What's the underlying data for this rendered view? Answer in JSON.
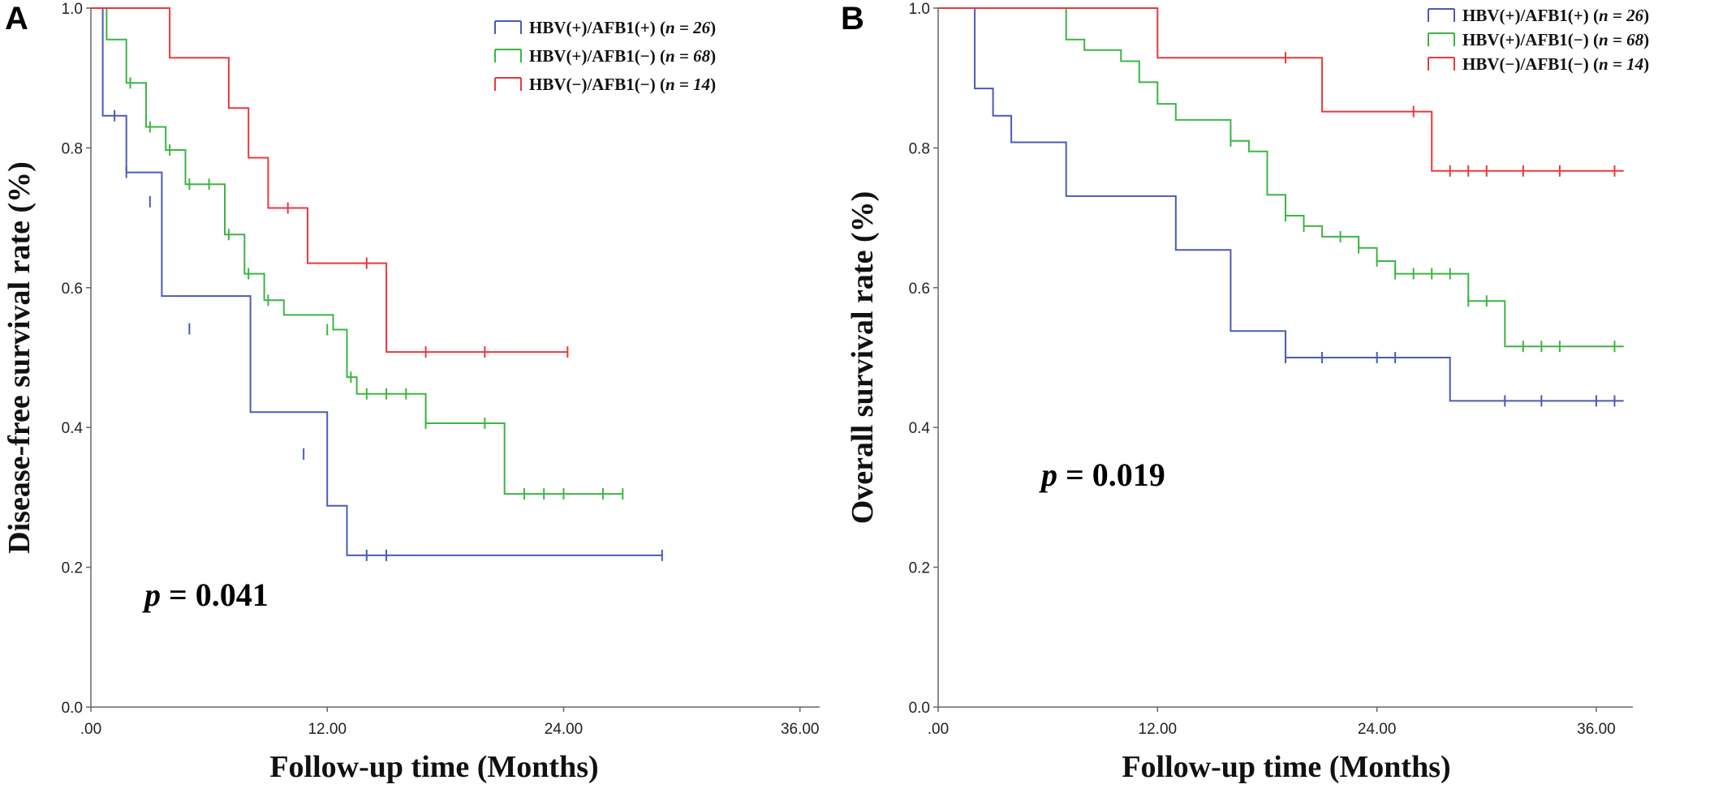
{
  "chart_data": [
    {
      "type": "line",
      "panel_label": "A",
      "xlabel": "Follow-up time (Months)",
      "ylabel": "Disease-free survival rate  (%)",
      "xlim": [
        0,
        37
      ],
      "ylim": [
        0,
        1
      ],
      "xticks": [
        0,
        12,
        24,
        36
      ],
      "xtick_labels": [
        ".00",
        "12.00",
        "24.00",
        "36.00"
      ],
      "yticks": [
        0,
        0.2,
        0.4,
        0.6,
        0.8,
        1.0
      ],
      "ytick_labels": [
        "0.0",
        "0.2",
        "0.4",
        "0.6",
        "0.8",
        "1.0"
      ],
      "legend_position": "top-right",
      "p_prefix": "p",
      "p_value": " = 0.041",
      "series": [
        {
          "name": "HBV(+)/AFB1(+)",
          "n": "n = 26",
          "color": "#4a5bb5",
          "steps": [
            [
              0,
              1.0
            ],
            [
              0.6,
              0.846
            ],
            [
              1.8,
              0.765
            ],
            [
              3.6,
              0.588
            ],
            [
              8.1,
              0.422
            ],
            [
              12,
              0.288
            ],
            [
              13,
              0.217
            ],
            [
              29,
              0.217
            ]
          ],
          "censored": [
            [
              1.2,
              0.846
            ],
            [
              1.8,
              0.765
            ],
            [
              3,
              0.723
            ],
            [
              5,
              0.541
            ],
            [
              10.8,
              0.362
            ],
            [
              14,
              0.217
            ],
            [
              15,
              0.217
            ],
            [
              29,
              0.217
            ]
          ]
        },
        {
          "name": "HBV(+)/AFB1(−)",
          "n": "n = 68",
          "color": "#3cb543",
          "steps": [
            [
              0,
              1.0
            ],
            [
              0.8,
              0.955
            ],
            [
              1.8,
              0.893
            ],
            [
              2.8,
              0.83
            ],
            [
              3.8,
              0.797
            ],
            [
              4.8,
              0.748
            ],
            [
              6.8,
              0.676
            ],
            [
              7.8,
              0.62
            ],
            [
              8.8,
              0.582
            ],
            [
              9.8,
              0.561
            ],
            [
              12.3,
              0.54
            ],
            [
              13,
              0.472
            ],
            [
              13.5,
              0.448
            ],
            [
              17,
              0.406
            ],
            [
              21,
              0.305
            ],
            [
              27,
              0.305
            ]
          ],
          "censored": [
            [
              2,
              0.893
            ],
            [
              3,
              0.83
            ],
            [
              4,
              0.797
            ],
            [
              5,
              0.748
            ],
            [
              6,
              0.748
            ],
            [
              7,
              0.676
            ],
            [
              8,
              0.62
            ],
            [
              9,
              0.582
            ],
            [
              12,
              0.54
            ],
            [
              13.2,
              0.472
            ],
            [
              14,
              0.448
            ],
            [
              15,
              0.448
            ],
            [
              16,
              0.448
            ],
            [
              17,
              0.406
            ],
            [
              20,
              0.406
            ],
            [
              22,
              0.305
            ],
            [
              23,
              0.305
            ],
            [
              24,
              0.305
            ],
            [
              26,
              0.305
            ],
            [
              27,
              0.305
            ]
          ]
        },
        {
          "name": "HBV(−)/AFB1(−)",
          "n": "n = 14",
          "color": "#e8393f",
          "steps": [
            [
              0,
              1.0
            ],
            [
              4,
              0.929
            ],
            [
              7,
              0.857
            ],
            [
              8,
              0.786
            ],
            [
              9,
              0.714
            ],
            [
              11,
              0.635
            ],
            [
              15,
              0.508
            ],
            [
              24.2,
              0.508
            ]
          ],
          "censored": [
            [
              10,
              0.714
            ],
            [
              14,
              0.635
            ],
            [
              17,
              0.508
            ],
            [
              20,
              0.508
            ],
            [
              24.2,
              0.508
            ]
          ]
        }
      ]
    },
    {
      "type": "line",
      "panel_label": "B",
      "xlabel": "Follow-up time (Months)",
      "ylabel": "Overall survival rate (%)",
      "xlim": [
        0,
        38
      ],
      "ylim": [
        0,
        1
      ],
      "xticks": [
        0,
        12,
        24,
        36
      ],
      "xtick_labels": [
        ".00",
        "12.00",
        "24.00",
        "36.00"
      ],
      "yticks": [
        0,
        0.2,
        0.4,
        0.6,
        0.8,
        1.0
      ],
      "ytick_labels": [
        "0.0",
        "0.2",
        "0.4",
        "0.6",
        "0.8",
        "1.0"
      ],
      "legend_position": "top-right",
      "p_prefix": "p",
      "p_value": " = 0.019",
      "series": [
        {
          "name": "HBV(+)/AFB1(+)",
          "n": "n = 26",
          "color": "#4a5bb5",
          "steps": [
            [
              0,
              1.0
            ],
            [
              2,
              0.885
            ],
            [
              3,
              0.846
            ],
            [
              4,
              0.808
            ],
            [
              7,
              0.731
            ],
            [
              13,
              0.654
            ],
            [
              16,
              0.538
            ],
            [
              19,
              0.5
            ],
            [
              28,
              0.438
            ],
            [
              37.5,
              0.438
            ]
          ],
          "censored": [
            [
              19,
              0.5
            ],
            [
              21,
              0.5
            ],
            [
              24,
              0.5
            ],
            [
              25,
              0.5
            ],
            [
              31,
              0.438
            ],
            [
              33,
              0.438
            ],
            [
              36,
              0.438
            ],
            [
              37,
              0.438
            ]
          ]
        },
        {
          "name": "HBV(+)/AFB1(−)",
          "n": "n = 68",
          "color": "#3cb543",
          "steps": [
            [
              0,
              1.0
            ],
            [
              7,
              0.955
            ],
            [
              8,
              0.94
            ],
            [
              10,
              0.924
            ],
            [
              11,
              0.894
            ],
            [
              12,
              0.863
            ],
            [
              13,
              0.84
            ],
            [
              16,
              0.81
            ],
            [
              17,
              0.795
            ],
            [
              18,
              0.733
            ],
            [
              19,
              0.703
            ],
            [
              20,
              0.688
            ],
            [
              21,
              0.673
            ],
            [
              23,
              0.657
            ],
            [
              24,
              0.638
            ],
            [
              25,
              0.62
            ],
            [
              29,
              0.581
            ],
            [
              31,
              0.516
            ],
            [
              37.5,
              0.516
            ]
          ],
          "censored": [
            [
              16,
              0.81
            ],
            [
              19,
              0.703
            ],
            [
              20,
              0.688
            ],
            [
              22,
              0.673
            ],
            [
              23,
              0.657
            ],
            [
              24,
              0.638
            ],
            [
              25,
              0.62
            ],
            [
              26,
              0.62
            ],
            [
              27,
              0.62
            ],
            [
              28,
              0.62
            ],
            [
              29,
              0.581
            ],
            [
              30,
              0.581
            ],
            [
              32,
              0.516
            ],
            [
              33,
              0.516
            ],
            [
              34,
              0.516
            ],
            [
              37,
              0.516
            ]
          ]
        },
        {
          "name": "HBV(−)/AFB1(−)",
          "n": "n = 14",
          "color": "#e8393f",
          "steps": [
            [
              0,
              1.0
            ],
            [
              12,
              0.929
            ],
            [
              21,
              0.852
            ],
            [
              27,
              0.767
            ],
            [
              37.5,
              0.767
            ]
          ],
          "censored": [
            [
              19,
              0.929
            ],
            [
              26,
              0.852
            ],
            [
              28,
              0.767
            ],
            [
              29,
              0.767
            ],
            [
              30,
              0.767
            ],
            [
              32,
              0.767
            ],
            [
              34,
              0.767
            ],
            [
              37,
              0.767
            ]
          ]
        }
      ]
    }
  ]
}
